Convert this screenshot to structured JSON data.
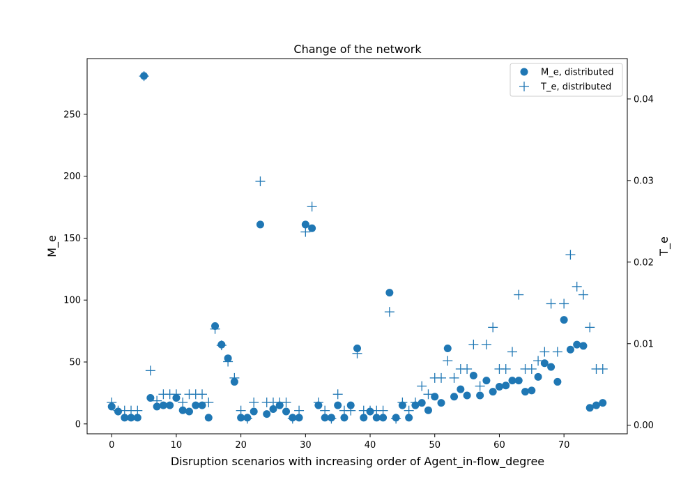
{
  "chart_data": {
    "type": "scatter",
    "title": "Change of the network",
    "xlabel": "Disruption scenarios with increasing order of Agent_in-flow_degree",
    "ylabel_left": "M_e",
    "ylabel_right": "T_e",
    "xlim": [
      -3.8,
      79.8
    ],
    "ylim_left": [
      -8,
      295
    ],
    "ylim_right": [
      -0.00105,
      0.04495
    ],
    "x_ticks": [
      0,
      10,
      20,
      30,
      40,
      50,
      60,
      70
    ],
    "y_ticks_left": [
      0,
      50,
      100,
      150,
      200,
      250
    ],
    "y_ticks_right": [
      0.0,
      0.01,
      0.02,
      0.03,
      0.04
    ],
    "y_tick_labels_right": [
      "0.00",
      "0.01",
      "0.02",
      "0.03",
      "0.04"
    ],
    "legend_position": "upper right",
    "color": "#1f77b4",
    "series": [
      {
        "name": "M_e, distributed",
        "marker": "circle",
        "axis": "left",
        "x": [
          0,
          1,
          2,
          3,
          4,
          5,
          6,
          7,
          8,
          9,
          10,
          11,
          12,
          13,
          14,
          15,
          16,
          17,
          18,
          19,
          20,
          21,
          22,
          23,
          24,
          25,
          26,
          27,
          28,
          29,
          30,
          31,
          32,
          33,
          34,
          35,
          36,
          37,
          38,
          39,
          40,
          41,
          42,
          43,
          44,
          45,
          46,
          47,
          48,
          49,
          50,
          51,
          52,
          53,
          54,
          55,
          56,
          57,
          58,
          59,
          60,
          61,
          62,
          63,
          64,
          65,
          66,
          67,
          68,
          69,
          70,
          71,
          72,
          73,
          74,
          75,
          76
        ],
        "values": [
          14,
          10,
          5,
          5,
          5,
          281,
          21,
          14,
          15,
          15,
          21,
          11,
          10,
          15,
          15,
          5,
          79,
          64,
          53,
          34,
          5,
          5,
          10,
          161,
          8,
          12,
          15,
          10,
          5,
          5,
          161,
          158,
          15,
          5,
          5,
          15,
          5,
          15,
          61,
          5,
          10,
          5,
          5,
          106,
          5,
          15,
          5,
          15,
          17,
          11,
          22,
          17,
          61,
          22,
          28,
          23,
          39,
          23,
          35,
          26,
          30,
          31,
          35,
          35,
          26,
          27,
          38,
          49,
          46,
          34,
          84,
          60,
          64,
          63,
          13,
          15,
          17
        ]
      },
      {
        "name": "T_e, distributed",
        "marker": "plus",
        "axis": "right",
        "x": [
          0,
          1,
          2,
          3,
          4,
          5,
          6,
          7,
          8,
          9,
          10,
          11,
          12,
          13,
          14,
          15,
          16,
          17,
          18,
          19,
          20,
          21,
          22,
          23,
          24,
          25,
          26,
          27,
          28,
          29,
          30,
          31,
          32,
          33,
          34,
          35,
          36,
          37,
          38,
          39,
          40,
          41,
          42,
          43,
          44,
          45,
          46,
          47,
          48,
          49,
          50,
          51,
          52,
          53,
          54,
          55,
          56,
          57,
          58,
          59,
          60,
          61,
          62,
          63,
          64,
          65,
          66,
          67,
          68,
          69,
          70,
          71,
          72,
          73,
          74,
          75,
          76
        ],
        "values": [
          0.0028,
          0.0018,
          0.0018,
          0.0018,
          0.0018,
          0.0428,
          0.0067,
          0.003,
          0.0038,
          0.0038,
          0.0038,
          0.0028,
          0.0038,
          0.0038,
          0.0038,
          0.0028,
          0.0118,
          0.0098,
          0.0078,
          0.0058,
          0.0018,
          0.0008,
          0.0028,
          0.0299,
          0.0028,
          0.0028,
          0.0028,
          0.0028,
          0.0008,
          0.0018,
          0.0237,
          0.0268,
          0.0028,
          0.0018,
          0.0008,
          0.0038,
          0.0018,
          0.0018,
          0.0088,
          0.0018,
          0.0018,
          0.0018,
          0.0018,
          0.0139,
          0.0008,
          0.0028,
          0.0018,
          0.0028,
          0.0048,
          0.0038,
          0.0058,
          0.0058,
          0.0079,
          0.0058,
          0.0069,
          0.0069,
          0.0099,
          0.0048,
          0.0099,
          0.012,
          0.0069,
          0.0069,
          0.009,
          0.016,
          0.0069,
          0.0069,
          0.0079,
          0.009,
          0.0149,
          0.009,
          0.0149,
          0.0209,
          0.017,
          0.016,
          0.012,
          0.0069,
          0.0069
        ]
      }
    ]
  }
}
